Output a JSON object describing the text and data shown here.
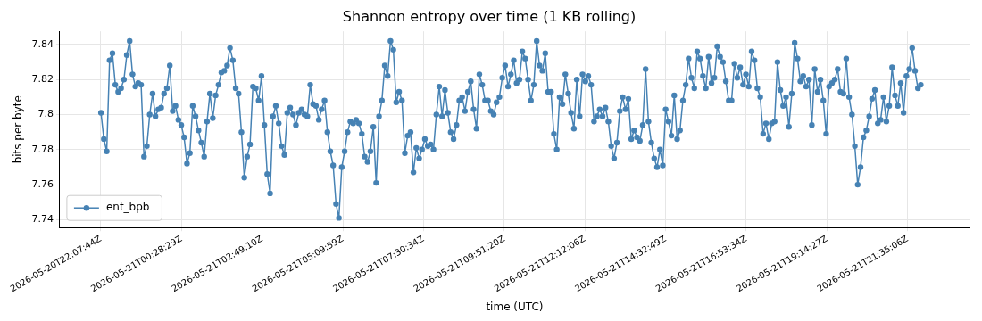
{
  "chart_data": {
    "type": "line",
    "title": "Shannon entropy over time (1 KB rolling)",
    "xlabel": "time (UTC)",
    "ylabel": "bits per byte",
    "x": [
      "2026-05-20T22:08",
      "2026-05-20T22:13",
      "2026-05-20T22:18",
      "2026-05-20T22:23",
      "2026-05-20T22:28",
      "2026-05-20T22:33",
      "2026-05-20T22:38",
      "2026-05-20T22:43",
      "2026-05-20T22:48",
      "2026-05-20T22:53",
      "2026-05-20T22:58",
      "2026-05-20T23:03",
      "2026-05-20T23:08",
      "2026-05-20T23:13",
      "2026-05-20T23:18",
      "2026-05-20T23:23",
      "2026-05-20T23:28",
      "2026-05-20T23:33",
      "2026-05-20T23:38",
      "2026-05-20T23:43",
      "2026-05-20T23:48",
      "2026-05-20T23:53",
      "2026-05-20T23:58",
      "2026-05-21T00:03",
      "2026-05-21T00:08",
      "2026-05-21T00:13",
      "2026-05-21T00:18",
      "2026-05-21T00:23",
      "2026-05-21T00:28",
      "2026-05-21T00:33",
      "2026-05-21T00:38",
      "2026-05-21T00:43",
      "2026-05-21T00:48",
      "2026-05-21T00:53",
      "2026-05-21T00:58",
      "2026-05-21T01:03",
      "2026-05-21T01:08",
      "2026-05-21T01:13",
      "2026-05-21T01:18",
      "2026-05-21T01:23",
      "2026-05-21T01:28",
      "2026-05-21T01:33",
      "2026-05-21T01:38",
      "2026-05-21T01:43",
      "2026-05-21T01:48",
      "2026-05-21T01:53",
      "2026-05-21T01:58",
      "2026-05-21T02:03",
      "2026-05-21T02:08",
      "2026-05-21T02:13",
      "2026-05-21T02:18",
      "2026-05-21T02:23",
      "2026-05-21T02:28",
      "2026-05-21T02:33",
      "2026-05-21T02:38",
      "2026-05-21T02:43",
      "2026-05-21T02:48",
      "2026-05-21T02:53",
      "2026-05-21T02:58",
      "2026-05-21T03:03",
      "2026-05-21T03:08",
      "2026-05-21T03:13",
      "2026-05-21T03:18",
      "2026-05-21T03:23",
      "2026-05-21T03:28",
      "2026-05-21T03:33",
      "2026-05-21T03:38",
      "2026-05-21T03:43",
      "2026-05-21T03:48",
      "2026-05-21T03:53",
      "2026-05-21T03:58",
      "2026-05-21T04:03",
      "2026-05-21T04:08",
      "2026-05-21T04:13",
      "2026-05-21T04:18",
      "2026-05-21T04:23",
      "2026-05-21T04:28",
      "2026-05-21T04:33",
      "2026-05-21T04:38",
      "2026-05-21T04:43",
      "2026-05-21T04:48",
      "2026-05-21T04:53",
      "2026-05-21T04:58",
      "2026-05-21T05:03",
      "2026-05-21T05:08",
      "2026-05-21T05:13",
      "2026-05-21T05:18",
      "2026-05-21T05:23",
      "2026-05-21T05:28",
      "2026-05-21T05:33",
      "2026-05-21T05:38",
      "2026-05-21T05:43",
      "2026-05-21T05:48",
      "2026-05-21T05:53",
      "2026-05-21T05:58",
      "2026-05-21T06:03",
      "2026-05-21T06:08",
      "2026-05-21T06:13",
      "2026-05-21T06:18",
      "2026-05-21T06:23",
      "2026-05-21T06:28",
      "2026-05-21T06:33",
      "2026-05-21T06:38",
      "2026-05-21T06:43",
      "2026-05-21T06:48",
      "2026-05-21T06:53",
      "2026-05-21T06:58",
      "2026-05-21T07:03",
      "2026-05-21T07:08",
      "2026-05-21T07:13",
      "2026-05-21T07:18",
      "2026-05-21T07:23",
      "2026-05-21T07:28",
      "2026-05-21T07:33",
      "2026-05-21T07:38",
      "2026-05-21T07:43",
      "2026-05-21T07:48",
      "2026-05-21T07:53",
      "2026-05-21T07:58",
      "2026-05-21T08:03",
      "2026-05-21T08:08",
      "2026-05-21T08:13",
      "2026-05-21T08:18",
      "2026-05-21T08:23",
      "2026-05-21T08:28",
      "2026-05-21T08:33",
      "2026-05-21T08:38",
      "2026-05-21T08:43",
      "2026-05-21T08:48",
      "2026-05-21T08:53",
      "2026-05-21T08:58",
      "2026-05-21T09:03",
      "2026-05-21T09:08",
      "2026-05-21T09:13",
      "2026-05-21T09:18",
      "2026-05-21T09:23",
      "2026-05-21T09:28",
      "2026-05-21T09:33",
      "2026-05-21T09:38",
      "2026-05-21T09:43",
      "2026-05-21T09:48",
      "2026-05-21T09:53",
      "2026-05-21T09:58",
      "2026-05-21T10:03",
      "2026-05-21T10:08",
      "2026-05-21T10:13",
      "2026-05-21T10:18",
      "2026-05-21T10:23",
      "2026-05-21T10:28",
      "2026-05-21T10:33",
      "2026-05-21T10:38",
      "2026-05-21T10:43",
      "2026-05-21T10:48",
      "2026-05-21T10:53",
      "2026-05-21T10:58",
      "2026-05-21T11:03",
      "2026-05-21T11:08",
      "2026-05-21T11:13",
      "2026-05-21T11:18",
      "2026-05-21T11:23",
      "2026-05-21T11:28",
      "2026-05-21T11:33",
      "2026-05-21T11:38",
      "2026-05-21T11:43",
      "2026-05-21T11:48",
      "2026-05-21T11:53",
      "2026-05-21T11:58",
      "2026-05-21T12:03",
      "2026-05-21T12:08",
      "2026-05-21T12:13",
      "2026-05-21T12:18",
      "2026-05-21T12:23",
      "2026-05-21T12:28",
      "2026-05-21T12:33",
      "2026-05-21T12:38",
      "2026-05-21T12:43",
      "2026-05-21T12:48",
      "2026-05-21T12:53",
      "2026-05-21T12:58",
      "2026-05-21T13:03",
      "2026-05-21T13:08",
      "2026-05-21T13:13",
      "2026-05-21T13:18",
      "2026-05-21T13:23",
      "2026-05-21T13:28",
      "2026-05-21T13:33",
      "2026-05-21T13:38",
      "2026-05-21T13:43",
      "2026-05-21T13:48",
      "2026-05-21T13:53",
      "2026-05-21T13:58",
      "2026-05-21T14:03",
      "2026-05-21T14:08",
      "2026-05-21T14:13",
      "2026-05-21T14:18",
      "2026-05-21T14:23",
      "2026-05-21T14:28",
      "2026-05-21T14:33",
      "2026-05-21T14:38",
      "2026-05-21T14:43",
      "2026-05-21T14:48",
      "2026-05-21T14:53",
      "2026-05-21T14:58",
      "2026-05-21T15:03",
      "2026-05-21T15:08",
      "2026-05-21T15:13",
      "2026-05-21T15:18",
      "2026-05-21T15:23",
      "2026-05-21T15:28",
      "2026-05-21T15:33",
      "2026-05-21T15:38",
      "2026-05-21T15:43",
      "2026-05-21T15:48",
      "2026-05-21T15:53",
      "2026-05-21T15:58",
      "2026-05-21T16:03",
      "2026-05-21T16:08",
      "2026-05-21T16:13",
      "2026-05-21T16:18",
      "2026-05-21T16:23",
      "2026-05-21T16:28",
      "2026-05-21T16:33",
      "2026-05-21T16:38",
      "2026-05-21T16:43",
      "2026-05-21T16:48",
      "2026-05-21T16:53",
      "2026-05-21T16:58",
      "2026-05-21T17:03",
      "2026-05-21T17:08",
      "2026-05-21T17:13",
      "2026-05-21T17:18",
      "2026-05-21T17:23",
      "2026-05-21T17:28",
      "2026-05-21T17:33",
      "2026-05-21T17:38",
      "2026-05-21T17:43",
      "2026-05-21T17:48",
      "2026-05-21T17:53",
      "2026-05-21T17:58",
      "2026-05-21T18:03",
      "2026-05-21T18:08",
      "2026-05-21T18:13",
      "2026-05-21T18:18",
      "2026-05-21T18:23",
      "2026-05-21T18:28",
      "2026-05-21T18:33",
      "2026-05-21T18:38",
      "2026-05-21T18:43",
      "2026-05-21T18:48",
      "2026-05-21T18:53",
      "2026-05-21T18:58",
      "2026-05-21T19:03",
      "2026-05-21T19:08",
      "2026-05-21T19:13",
      "2026-05-21T19:18",
      "2026-05-21T19:23",
      "2026-05-21T19:28",
      "2026-05-21T19:33",
      "2026-05-21T19:38",
      "2026-05-21T19:43",
      "2026-05-21T19:48",
      "2026-05-21T19:53",
      "2026-05-21T19:58",
      "2026-05-21T20:03",
      "2026-05-21T20:08",
      "2026-05-21T20:13",
      "2026-05-21T20:18",
      "2026-05-21T20:23",
      "2026-05-21T20:28",
      "2026-05-21T20:33",
      "2026-05-21T20:38",
      "2026-05-21T20:43",
      "2026-05-21T20:48",
      "2026-05-21T20:53",
      "2026-05-21T20:58",
      "2026-05-21T21:03",
      "2026-05-21T21:08",
      "2026-05-21T21:13",
      "2026-05-21T21:18",
      "2026-05-21T21:23",
      "2026-05-21T21:28",
      "2026-05-21T21:33",
      "2026-05-21T21:38",
      "2026-05-21T21:43",
      "2026-05-21T21:48",
      "2026-05-21T21:53",
      "2026-05-21T21:58"
    ],
    "series": [
      {
        "name": "ent_bpb",
        "color": "#4682b4",
        "values": [
          7.801,
          7.786,
          7.779,
          7.831,
          7.835,
          7.817,
          7.813,
          7.815,
          7.82,
          7.834,
          7.842,
          7.823,
          7.816,
          7.818,
          7.817,
          7.776,
          7.782,
          7.8,
          7.812,
          7.799,
          7.803,
          7.804,
          7.812,
          7.815,
          7.828,
          7.802,
          7.805,
          7.797,
          7.794,
          7.787,
          7.772,
          7.778,
          7.805,
          7.799,
          7.791,
          7.784,
          7.776,
          7.796,
          7.812,
          7.798,
          7.811,
          7.817,
          7.824,
          7.825,
          7.828,
          7.838,
          7.831,
          7.815,
          7.812,
          7.79,
          7.764,
          7.776,
          7.783,
          7.816,
          7.815,
          7.808,
          7.822,
          7.794,
          7.766,
          7.755,
          7.799,
          7.805,
          7.795,
          7.782,
          7.777,
          7.801,
          7.804,
          7.8,
          7.794,
          7.801,
          7.803,
          7.8,
          7.799,
          7.817,
          7.806,
          7.805,
          7.797,
          7.803,
          7.808,
          7.79,
          7.779,
          7.771,
          7.749,
          7.741,
          7.77,
          7.779,
          7.79,
          7.796,
          7.795,
          7.797,
          7.795,
          7.789,
          7.776,
          7.773,
          7.779,
          7.793,
          7.761,
          7.799,
          7.808,
          7.828,
          7.822,
          7.842,
          7.837,
          7.807,
          7.813,
          7.808,
          7.778,
          7.788,
          7.79,
          7.767,
          7.781,
          7.775,
          7.78,
          7.786,
          7.782,
          7.783,
          7.78,
          7.8,
          7.816,
          7.799,
          7.814,
          7.801,
          7.79,
          7.786,
          7.794,
          7.808,
          7.81,
          7.802,
          7.813,
          7.819,
          7.803,
          7.792,
          7.823,
          7.817,
          7.808,
          7.808,
          7.802,
          7.8,
          7.807,
          7.81,
          7.821,
          7.828,
          7.816,
          7.823,
          7.831,
          7.818,
          7.82,
          7.836,
          7.832,
          7.82,
          7.808,
          7.817,
          7.842,
          7.828,
          7.825,
          7.835,
          7.813,
          7.813,
          7.789,
          7.78,
          7.81,
          7.806,
          7.823,
          7.812,
          7.801,
          7.792,
          7.82,
          7.799,
          7.823,
          7.819,
          7.822,
          7.817,
          7.796,
          7.799,
          7.803,
          7.799,
          7.804,
          7.796,
          7.782,
          7.775,
          7.784,
          7.802,
          7.81,
          7.803,
          7.809,
          7.786,
          7.791,
          7.787,
          7.785,
          7.794,
          7.826,
          7.796,
          7.784,
          7.775,
          7.77,
          7.78,
          7.771,
          7.803,
          7.796,
          7.788,
          7.811,
          7.786,
          7.791,
          7.808,
          7.817,
          7.832,
          7.821,
          7.815,
          7.836,
          7.832,
          7.822,
          7.815,
          7.833,
          7.818,
          7.821,
          7.839,
          7.833,
          7.83,
          7.819,
          7.808,
          7.808,
          7.829,
          7.821,
          7.827,
          7.817,
          7.823,
          7.816,
          7.836,
          7.831,
          7.815,
          7.81,
          7.789,
          7.795,
          7.786,
          7.795,
          7.796,
          7.83,
          7.814,
          7.805,
          7.81,
          7.793,
          7.812,
          7.841,
          7.832,
          7.819,
          7.822,
          7.816,
          7.82,
          7.794,
          7.826,
          7.813,
          7.82,
          7.808,
          7.789,
          7.816,
          7.818,
          7.82,
          7.826,
          7.813,
          7.812,
          7.832,
          7.81,
          7.8,
          7.782,
          7.76,
          7.77,
          7.787,
          7.791,
          7.799,
          7.809,
          7.814,
          7.795,
          7.797,
          7.81,
          7.796,
          7.805,
          7.827,
          7.811,
          7.805,
          7.818,
          7.801,
          7.822,
          7.826,
          7.838,
          7.825,
          7.815,
          7.817
        ]
      }
    ],
    "xlim": [
      "2026-05-20T20:56",
      "2026-05-21T23:23"
    ],
    "xticks": [
      "2026-05-20T22:07:44Z",
      "2026-05-21T00:28:29Z",
      "2026-05-21T02:49:10Z",
      "2026-05-21T05:09:59Z",
      "2026-05-21T07:30:34Z",
      "2026-05-21T09:51:20Z",
      "2026-05-21T12:12:06Z",
      "2026-05-21T14:32:49Z",
      "2026-05-21T16:53:34Z",
      "2026-05-21T19:14:27Z",
      "2026-05-21T21:35:06Z"
    ],
    "ylim": [
      7.7355,
      7.8475
    ],
    "yticks": [
      7.74,
      7.76,
      7.78,
      7.8,
      7.82,
      7.84
    ],
    "grid": true,
    "legend": "bottom left",
    "marker": "circle",
    "line_style": "solid"
  }
}
